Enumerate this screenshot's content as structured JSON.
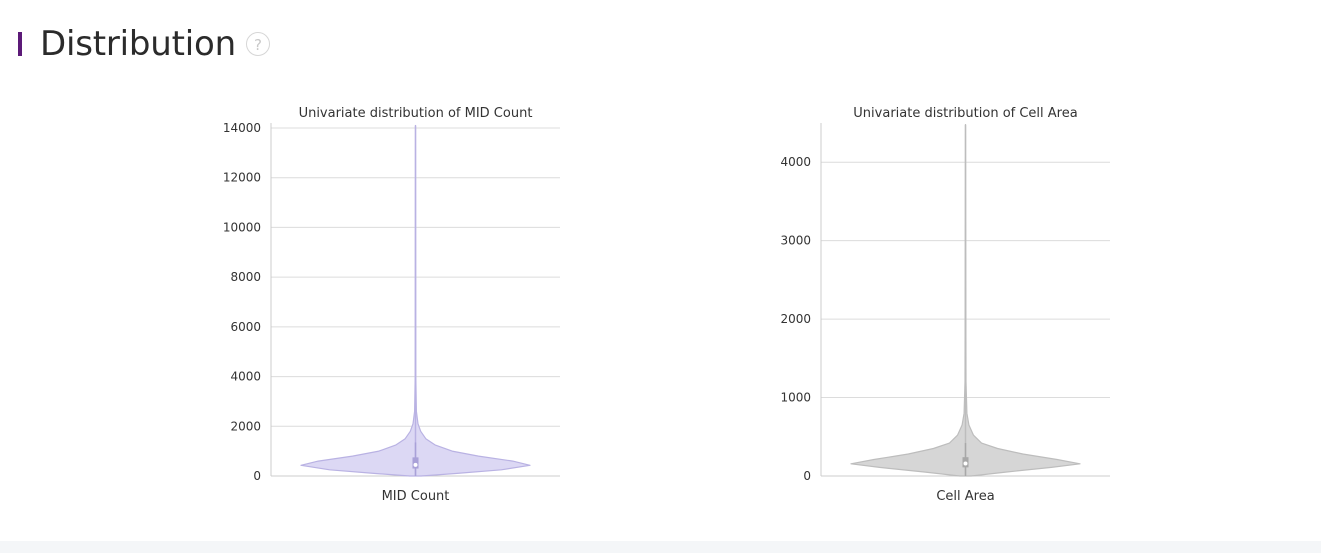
{
  "section": {
    "title": "Distribution",
    "help_glyph": "?",
    "accent_color": "#5c1a78"
  },
  "chart_data": [
    {
      "type": "violin",
      "title": "Univariate distribution of MID Count",
      "xlabel": "MID Count",
      "ylabel": "",
      "ylim": [
        0,
        14200
      ],
      "yticks": [
        0,
        2000,
        4000,
        6000,
        8000,
        10000,
        12000,
        14000
      ],
      "fill_color": "#dcd8f4",
      "line_color": "#b9b2e3",
      "box_color": "#a9a1d8",
      "grid": true,
      "density": [
        {
          "y": 0,
          "w": 0.05
        },
        {
          "y": 100,
          "w": 0.35
        },
        {
          "y": 250,
          "w": 0.75
        },
        {
          "y": 430,
          "w": 1.0
        },
        {
          "y": 600,
          "w": 0.85
        },
        {
          "y": 800,
          "w": 0.55
        },
        {
          "y": 1000,
          "w": 0.32
        },
        {
          "y": 1250,
          "w": 0.17
        },
        {
          "y": 1500,
          "w": 0.09
        },
        {
          "y": 1800,
          "w": 0.045
        },
        {
          "y": 2100,
          "w": 0.022
        },
        {
          "y": 2600,
          "w": 0.008
        },
        {
          "y": 4000,
          "w": 0.003
        },
        {
          "y": 14100,
          "w": 0.0
        }
      ],
      "box": {
        "q1": 300,
        "median": 450,
        "q3": 750,
        "whisker_low": 0,
        "whisker_high": 1350
      },
      "max": 14100
    },
    {
      "type": "violin",
      "title": "Univariate distribution of Cell Area",
      "xlabel": "Cell Area",
      "ylabel": "",
      "ylim": [
        0,
        4500
      ],
      "yticks": [
        0,
        1000,
        2000,
        3000,
        4000
      ],
      "fill_color": "#d6d6d6",
      "line_color": "#bdbdbd",
      "box_color": "#a8a8a8",
      "grid": true,
      "density": [
        {
          "y": 0,
          "w": 0.05
        },
        {
          "y": 50,
          "w": 0.35
        },
        {
          "y": 110,
          "w": 0.75
        },
        {
          "y": 155,
          "w": 1.0
        },
        {
          "y": 210,
          "w": 0.8
        },
        {
          "y": 280,
          "w": 0.5
        },
        {
          "y": 350,
          "w": 0.28
        },
        {
          "y": 420,
          "w": 0.14
        },
        {
          "y": 520,
          "w": 0.07
        },
        {
          "y": 650,
          "w": 0.03
        },
        {
          "y": 800,
          "w": 0.012
        },
        {
          "y": 1200,
          "w": 0.004
        },
        {
          "y": 4480,
          "w": 0.0
        }
      ],
      "box": {
        "q1": 110,
        "median": 160,
        "q3": 240,
        "whisker_low": 0,
        "whisker_high": 420
      },
      "max": 4480
    }
  ]
}
